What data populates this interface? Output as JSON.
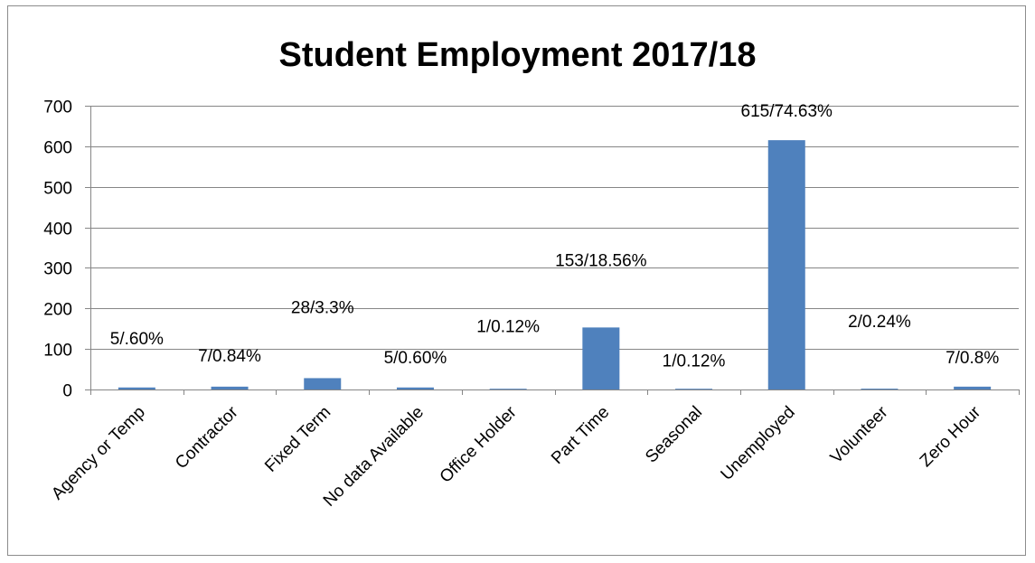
{
  "chart_data": {
    "type": "bar",
    "title": "Student Employment 2017/18",
    "xlabel": "",
    "ylabel": "",
    "ylim": [
      0,
      700
    ],
    "yticks": [
      0,
      100,
      200,
      300,
      400,
      500,
      600,
      700
    ],
    "grid": true,
    "legend": "none",
    "categories": [
      "Agency or Temp",
      "Contractor",
      "Fixed Term",
      "No data Available",
      "Office Holder",
      "Part Time",
      "Seasonal",
      "Unemployed",
      "Volunteer",
      "Zero Hour"
    ],
    "values": [
      5,
      7,
      28,
      5,
      1,
      153,
      1,
      615,
      2,
      7
    ],
    "data_labels": [
      "5/.60%",
      "7/0.84%",
      "28/3.3%",
      "5/0.60%",
      "1/0.12%",
      "153/18.56%",
      "1/0.12%",
      "615/74.63%",
      "2/0.24%",
      "7/0.8%"
    ],
    "colors": {
      "bar": "#4f81bd",
      "grid": "#868686",
      "axis": "#868686"
    }
  }
}
